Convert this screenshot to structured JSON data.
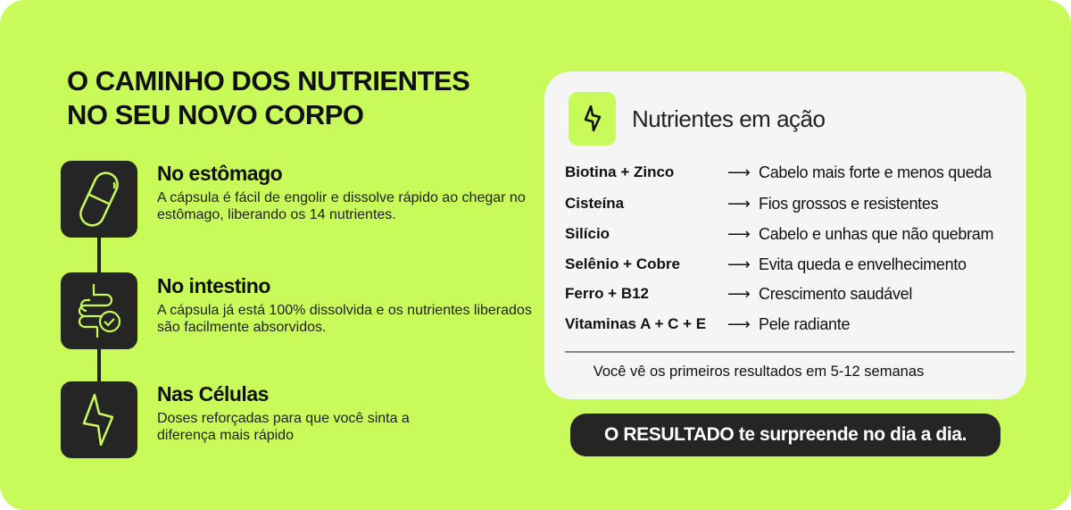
{
  "heading": {
    "line1": "O CAMINHO DOS NUTRIENTES",
    "line2": "NO SEU NOVO CORPO"
  },
  "steps": [
    {
      "icon": "capsule-icon",
      "title": "No estômago",
      "text": "A cápsula é fácil de engolir e dissolve rápido ao chegar no estômago, liberando os 14 nutrientes."
    },
    {
      "icon": "intestine-check-icon",
      "title": "No intestino",
      "text": "A cápsula já está 100% dissolvida e os nutrientes liberados são facilmente absorvidos."
    },
    {
      "icon": "lightning-icon",
      "title": "Nas Células",
      "text": "Doses reforçadas para que você sinta a diferença mais rápido"
    }
  ],
  "card": {
    "icon": "lightning-icon",
    "title": "Nutrientes em ação",
    "arrow": "⟶",
    "rows": [
      {
        "nutrient": "Biotina + Zinco",
        "benefit": "Cabelo mais forte e menos queda"
      },
      {
        "nutrient": "Cisteína",
        "benefit": "Fios grossos e resistentes"
      },
      {
        "nutrient": "Silício",
        "benefit": "Cabelo e unhas que não quebram"
      },
      {
        "nutrient": "Selênio + Cobre",
        "benefit": "Evita queda e envelhecimento"
      },
      {
        "nutrient": "Ferro + B12",
        "benefit": "Crescimento saudável"
      },
      {
        "nutrient": "Vitaminas A + C + E",
        "benefit": "Pele radiante"
      }
    ],
    "footer": "Você vê os primeiros resultados em 5-12 semanas"
  },
  "cta": "O RESULTADO te surpreende no dia a dia.",
  "colors": {
    "background": "#c8fa5a",
    "dark": "#252525",
    "card": "#f5f5f5"
  }
}
